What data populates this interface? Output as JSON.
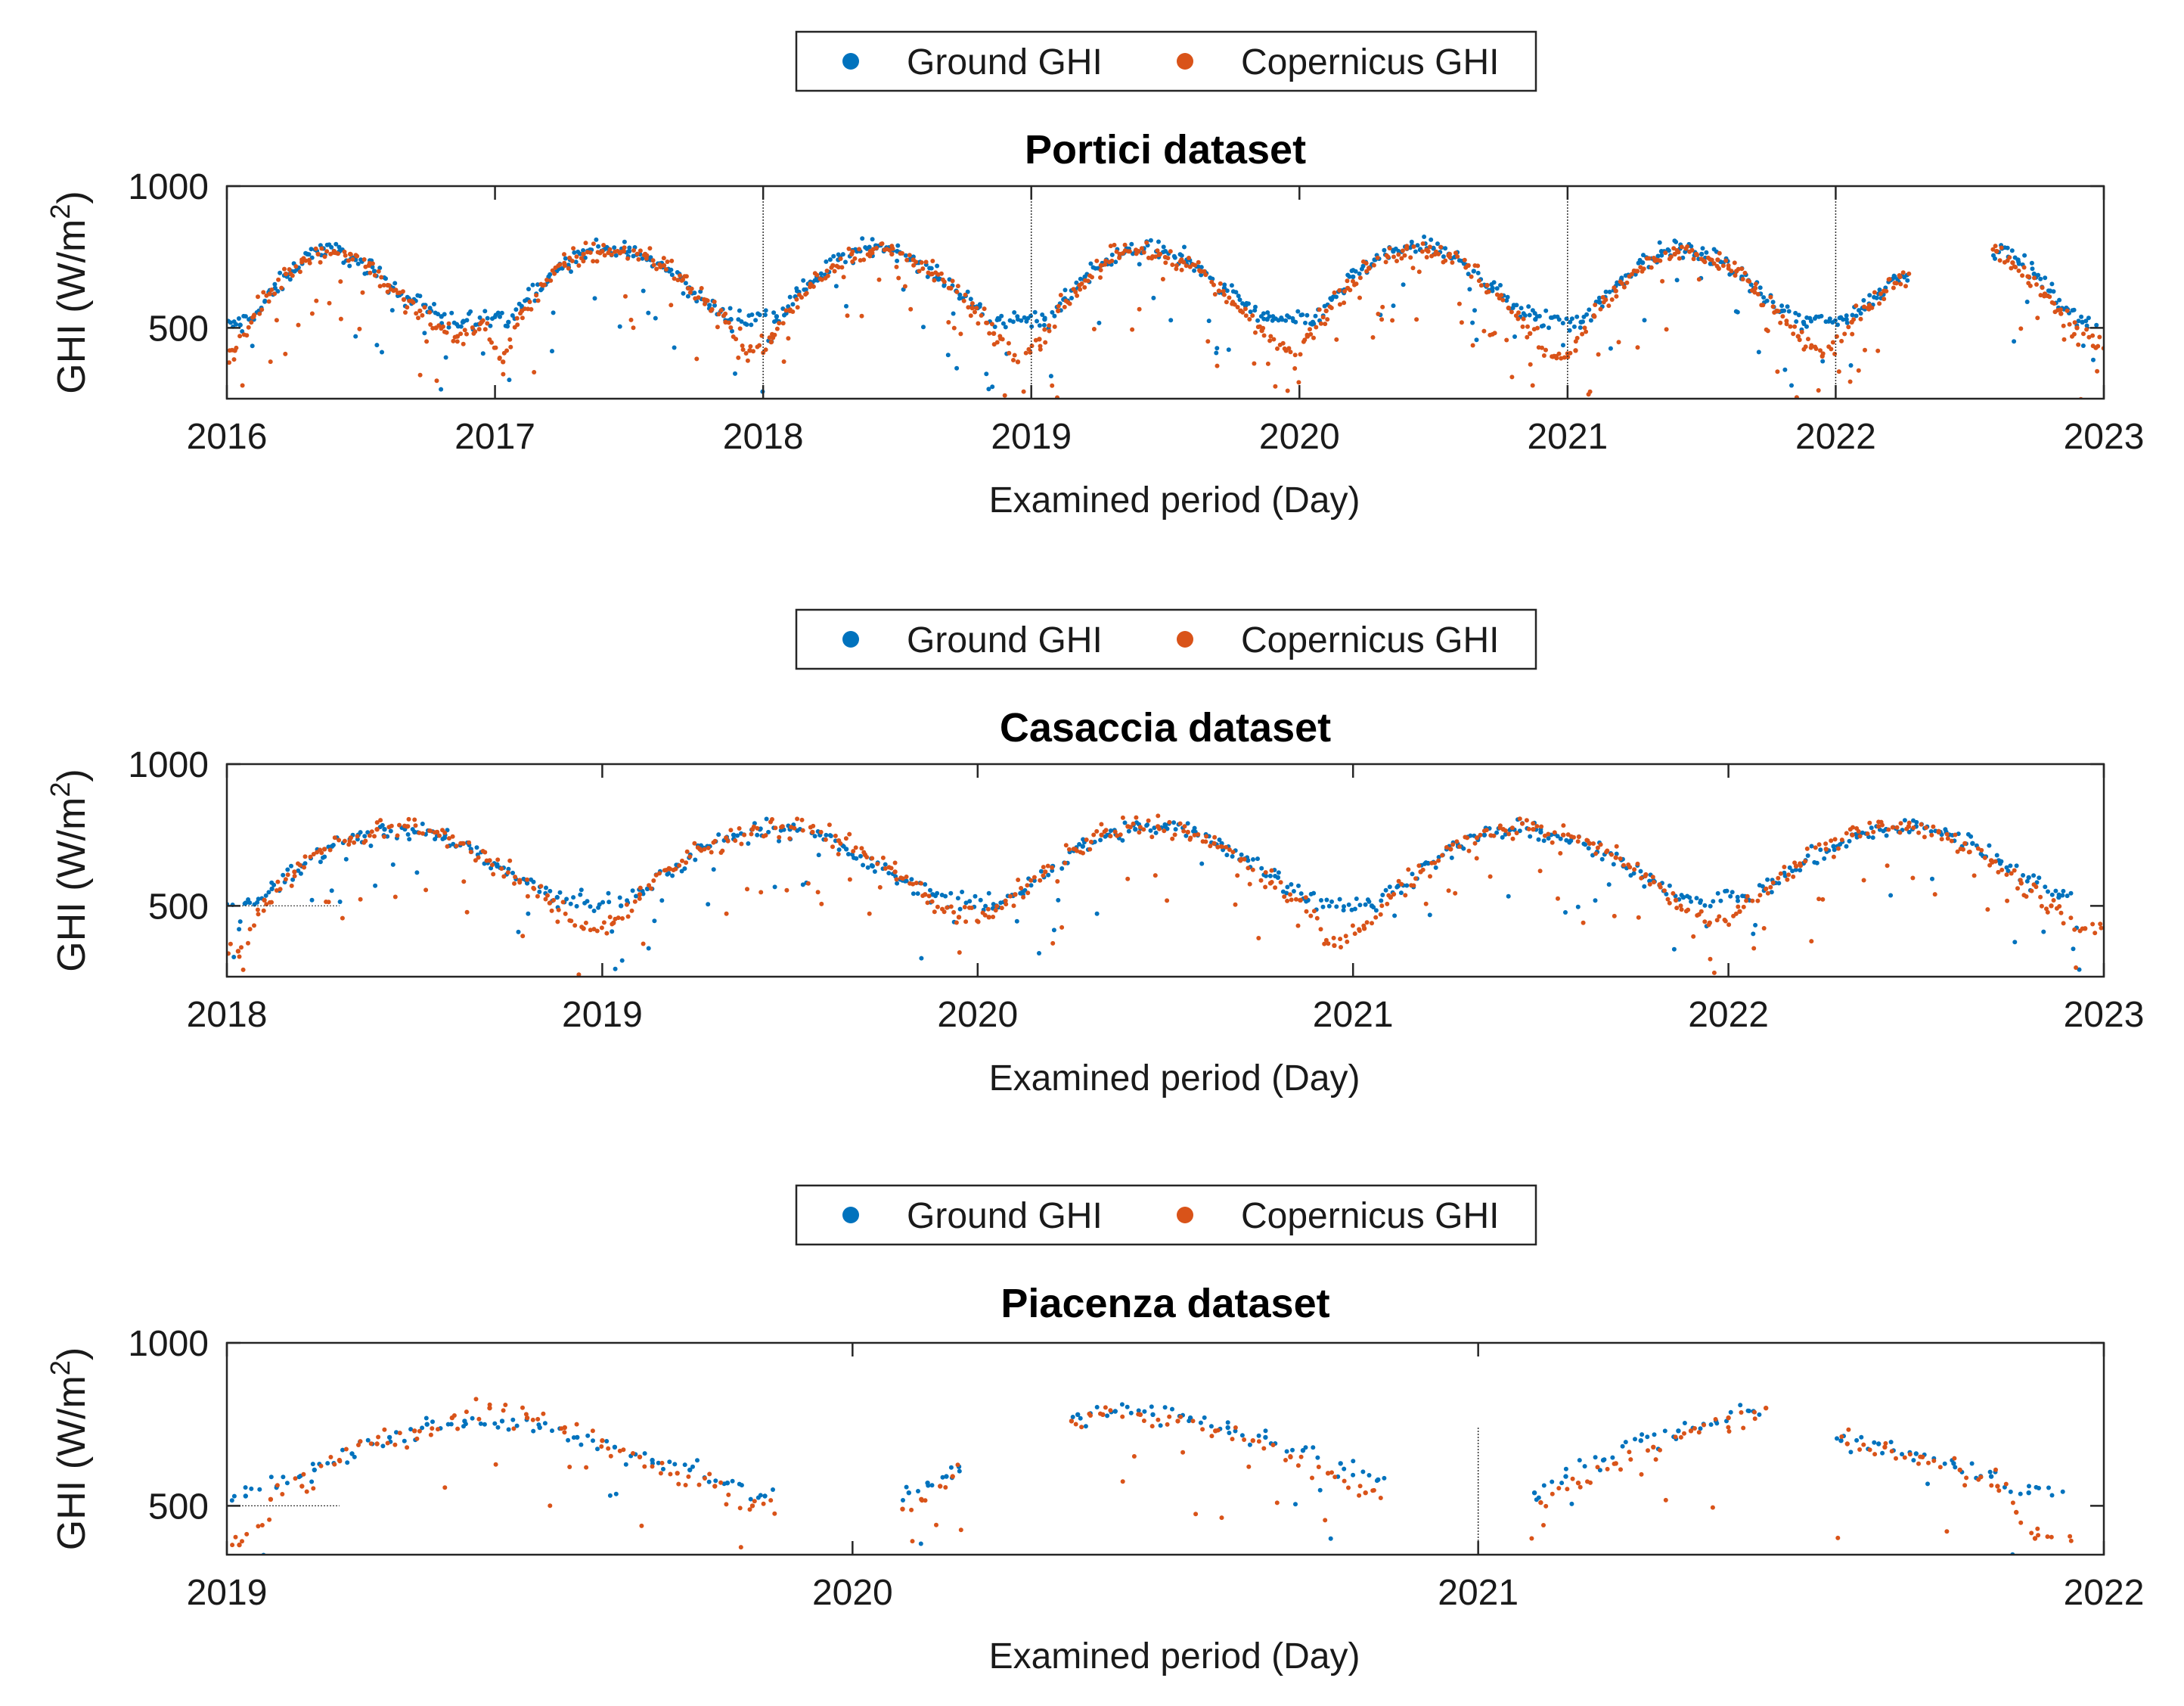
{
  "colors": {
    "ground": "#0072BD",
    "copernicus": "#D95319",
    "axis": "#262626"
  },
  "chart_data": [
    {
      "type": "scatter",
      "title": "Portici dataset",
      "xlabel": "Examined period (Day)",
      "ylabel": "GHI (W/m²)",
      "ylabel_base": "GHI (W/m",
      "ylabel_sup": "2",
      "ylabel_close": ")",
      "xlim": [
        2016,
        2023
      ],
      "ylim": [
        250,
        1000
      ],
      "xticks": [
        2016,
        2017,
        2018,
        2019,
        2020,
        2021,
        2022,
        2023
      ],
      "xtick_labels": [
        "2016",
        "2017",
        "2018",
        "2019",
        "2020",
        "2021",
        "2022",
        "2023"
      ],
      "yticks": [
        500,
        1000
      ],
      "ytick_labels": [
        "500",
        "1000"
      ],
      "legend": [
        "Ground GHI",
        "Copernicus GHI"
      ],
      "legend_position": "top-center outside",
      "gaps": [
        [
          2022.28,
          2022.58
        ]
      ],
      "series": [
        {
          "name": "Ground GHI",
          "x": [
            2016.05,
            2016.12,
            2016.18,
            2016.24,
            2016.3,
            2016.36,
            2016.42,
            2016.48,
            2016.55,
            2016.62,
            2016.68,
            2016.74,
            2016.8,
            2016.88,
            2017.05,
            2017.12,
            2017.2,
            2017.28,
            2017.35,
            2017.42,
            2017.5,
            2017.58,
            2017.65,
            2017.72,
            2017.8,
            2017.88,
            2018.05,
            2018.12,
            2018.2,
            2018.28,
            2018.35,
            2018.42,
            2018.5,
            2018.58,
            2018.65,
            2018.72,
            2018.8,
            2018.88,
            2019.05,
            2019.12,
            2019.2,
            2019.28,
            2019.35,
            2019.42,
            2019.5,
            2019.58,
            2019.65,
            2019.72,
            2019.8,
            2019.88,
            2020.05,
            2020.12,
            2020.2,
            2020.28,
            2020.35,
            2020.42,
            2020.5,
            2020.58,
            2020.65,
            2020.72,
            2020.8,
            2020.88,
            2021.05,
            2021.12,
            2021.2,
            2021.28,
            2021.35,
            2021.42,
            2021.5,
            2021.58,
            2021.65,
            2021.72,
            2021.8,
            2021.88,
            2022.04,
            2022.1,
            2022.16,
            2022.22,
            2022.62,
            2022.68,
            2022.74,
            2022.8,
            2022.86,
            2022.92
          ],
          "y": [
            510,
            560,
            640,
            700,
            760,
            780,
            770,
            740,
            700,
            640,
            600,
            580,
            540,
            520,
            520,
            600,
            680,
            740,
            770,
            780,
            770,
            740,
            700,
            640,
            580,
            530,
            540,
            610,
            680,
            740,
            770,
            790,
            770,
            730,
            680,
            630,
            570,
            530,
            530,
            600,
            680,
            740,
            770,
            780,
            770,
            740,
            690,
            640,
            580,
            530,
            520,
            600,
            680,
            740,
            770,
            790,
            780,
            750,
            700,
            640,
            580,
            530,
            520,
            590,
            670,
            730,
            770,
            780,
            760,
            730,
            680,
            620,
            560,
            520,
            530,
            570,
            620,
            680,
            780,
            740,
            690,
            630,
            570,
            520
          ]
        },
        {
          "name": "Copernicus GHI",
          "x": [
            2016.03,
            2016.1,
            2016.16,
            2016.22,
            2016.28,
            2016.34,
            2016.4,
            2016.46,
            2016.53,
            2016.6,
            2016.66,
            2016.72,
            2016.78,
            2016.86,
            2016.95,
            2017.03,
            2017.1,
            2017.18,
            2017.26,
            2017.33,
            2017.4,
            2017.48,
            2017.56,
            2017.63,
            2017.7,
            2017.78,
            2017.86,
            2017.95,
            2018.03,
            2018.1,
            2018.18,
            2018.26,
            2018.33,
            2018.4,
            2018.48,
            2018.56,
            2018.63,
            2018.7,
            2018.78,
            2018.86,
            2018.95,
            2019.03,
            2019.1,
            2019.18,
            2019.26,
            2019.33,
            2019.4,
            2019.48,
            2019.56,
            2019.63,
            2019.7,
            2019.78,
            2019.86,
            2019.95,
            2020.03,
            2020.1,
            2020.18,
            2020.26,
            2020.33,
            2020.4,
            2020.48,
            2020.56,
            2020.63,
            2020.7,
            2020.78,
            2020.86,
            2020.95,
            2021.03,
            2021.1,
            2021.18,
            2021.26,
            2021.33,
            2021.4,
            2021.48,
            2021.56,
            2021.63,
            2021.7,
            2021.78,
            2021.86,
            2021.95,
            2022.06,
            2022.12,
            2022.18,
            2022.24,
            2022.6,
            2022.66,
            2022.72,
            2022.78,
            2022.84,
            2022.9,
            2022.97
          ],
          "y": [
            420,
            540,
            620,
            690,
            740,
            760,
            770,
            760,
            720,
            650,
            600,
            560,
            500,
            470,
            520,
            380,
            560,
            650,
            720,
            760,
            770,
            770,
            760,
            720,
            670,
            600,
            520,
            420,
            450,
            560,
            650,
            720,
            760,
            770,
            760,
            740,
            690,
            640,
            570,
            480,
            380,
            460,
            560,
            650,
            720,
            760,
            770,
            760,
            740,
            700,
            630,
            560,
            490,
            420,
            470,
            560,
            640,
            710,
            750,
            780,
            770,
            760,
            720,
            650,
            570,
            480,
            400,
            420,
            540,
            630,
            700,
            740,
            760,
            760,
            740,
            700,
            640,
            560,
            470,
            400,
            520,
            570,
            630,
            680,
            770,
            730,
            680,
            620,
            550,
            500,
            430
          ]
        }
      ]
    },
    {
      "type": "scatter",
      "title": "Casaccia dataset",
      "xlabel": "Examined period (Day)",
      "ylabel": "GHI (W/m²)",
      "ylabel_base": "GHI (W/m",
      "ylabel_sup": "2",
      "ylabel_close": ")",
      "xlim": [
        2018,
        2023
      ],
      "ylim": [
        250,
        1000
      ],
      "xticks": [
        2018,
        2019,
        2020,
        2021,
        2022,
        2023
      ],
      "xtick_labels": [
        "2018",
        "2019",
        "2020",
        "2021",
        "2022",
        "2023"
      ],
      "yticks": [
        500,
        1000
      ],
      "ytick_labels": [
        "500",
        "1000"
      ],
      "legend": [
        "Ground GHI",
        "Copernicus GHI"
      ],
      "legend_position": "top-center outside",
      "gaps": [],
      "series": [
        {
          "name": "Ground GHI",
          "x": [
            2018.05,
            2018.12,
            2018.2,
            2018.28,
            2018.35,
            2018.42,
            2018.5,
            2018.58,
            2018.65,
            2018.72,
            2018.8,
            2018.88,
            2019.05,
            2019.12,
            2019.2,
            2019.28,
            2019.35,
            2019.42,
            2019.5,
            2019.58,
            2019.65,
            2019.72,
            2019.8,
            2019.88,
            2020.05,
            2020.12,
            2020.2,
            2020.28,
            2020.35,
            2020.42,
            2020.5,
            2020.58,
            2020.65,
            2020.72,
            2020.8,
            2020.88,
            2021.05,
            2021.12,
            2021.2,
            2021.28,
            2021.35,
            2021.42,
            2021.5,
            2021.58,
            2021.65,
            2021.72,
            2021.8,
            2021.88,
            2022.05,
            2022.12,
            2022.2,
            2022.28,
            2022.35,
            2022.42,
            2022.5,
            2022.58,
            2022.65,
            2022.72,
            2022.8,
            2022.88
          ],
          "y": [
            510,
            560,
            640,
            710,
            750,
            770,
            760,
            740,
            700,
            640,
            580,
            530,
            500,
            560,
            640,
            710,
            750,
            770,
            770,
            750,
            700,
            640,
            590,
            540,
            500,
            550,
            640,
            710,
            750,
            770,
            780,
            760,
            720,
            660,
            600,
            520,
            500,
            570,
            650,
            710,
            750,
            770,
            760,
            730,
            690,
            640,
            590,
            530,
            530,
            580,
            650,
            710,
            750,
            770,
            780,
            760,
            720,
            660,
            600,
            530
          ]
        },
        {
          "name": "Copernicus GHI",
          "x": [
            2018.03,
            2018.1,
            2018.18,
            2018.26,
            2018.33,
            2018.4,
            2018.48,
            2018.56,
            2018.63,
            2018.7,
            2018.78,
            2018.86,
            2018.95,
            2019.03,
            2019.1,
            2019.18,
            2019.26,
            2019.33,
            2019.4,
            2019.48,
            2019.56,
            2019.63,
            2019.7,
            2019.78,
            2019.86,
            2019.95,
            2020.03,
            2020.1,
            2020.18,
            2020.26,
            2020.33,
            2020.4,
            2020.48,
            2020.56,
            2020.63,
            2020.7,
            2020.78,
            2020.86,
            2020.95,
            2021.03,
            2021.1,
            2021.18,
            2021.26,
            2021.33,
            2021.4,
            2021.48,
            2021.56,
            2021.63,
            2021.7,
            2021.78,
            2021.86,
            2021.95,
            2022.03,
            2022.1,
            2022.18,
            2022.26,
            2022.33,
            2022.4,
            2022.48,
            2022.56,
            2022.63,
            2022.7,
            2022.78,
            2022.86,
            2022.95
          ],
          "y": [
            340,
            520,
            620,
            700,
            740,
            770,
            780,
            760,
            720,
            660,
            590,
            510,
            420,
            440,
            540,
            630,
            700,
            740,
            770,
            780,
            760,
            730,
            680,
            620,
            540,
            460,
            460,
            540,
            620,
            700,
            750,
            780,
            780,
            760,
            720,
            660,
            580,
            520,
            360,
            420,
            530,
            620,
            700,
            740,
            770,
            770,
            750,
            720,
            670,
            610,
            520,
            440,
            480,
            560,
            640,
            700,
            750,
            780,
            780,
            760,
            720,
            660,
            580,
            500,
            420
          ]
        }
      ]
    },
    {
      "type": "scatter",
      "title": "Piacenza dataset",
      "xlabel": "Examined period (Day)",
      "ylabel": "GHI (W/m²)",
      "ylabel_base": "GHI (W/m",
      "ylabel_sup": "2",
      "ylabel_close": ")",
      "xlim": [
        2019,
        2022
      ],
      "ylim": [
        350,
        1000
      ],
      "xticks": [
        2019,
        2020,
        2021,
        2022
      ],
      "xtick_labels": [
        "2019",
        "2020",
        "2021",
        "2022"
      ],
      "yticks": [
        500,
        1000
      ],
      "ytick_labels": [
        "500",
        "1000"
      ],
      "legend": [
        "Ground GHI",
        "Copernicus GHI"
      ],
      "legend_position": "top-center outside",
      "gaps": [
        [
          2019.88,
          2020.08
        ],
        [
          2020.18,
          2020.35
        ],
        [
          2020.85,
          2021.08
        ],
        [
          2021.45,
          2021.57
        ]
      ],
      "series": [
        {
          "name": "Ground GHI",
          "x": [
            2019.03,
            2019.08,
            2019.14,
            2019.2,
            2019.26,
            2019.32,
            2019.38,
            2019.44,
            2019.5,
            2019.56,
            2019.62,
            2019.68,
            2019.74,
            2019.8,
            2019.86,
            2020.09,
            2020.12,
            2020.15,
            2020.17,
            2020.36,
            2020.42,
            2020.48,
            2020.54,
            2020.6,
            2020.66,
            2020.72,
            2020.78,
            2020.84,
            2021.09,
            2021.14,
            2021.2,
            2021.26,
            2021.32,
            2021.38,
            2021.44,
            2021.58,
            2021.64,
            2021.7,
            2021.76,
            2021.82,
            2021.88
          ],
          "y": [
            530,
            560,
            610,
            660,
            710,
            750,
            760,
            760,
            740,
            710,
            680,
            640,
            610,
            570,
            530,
            540,
            570,
            590,
            620,
            780,
            790,
            780,
            770,
            740,
            710,
            670,
            630,
            580,
            540,
            590,
            640,
            700,
            730,
            760,
            790,
            700,
            690,
            660,
            630,
            590,
            540
          ]
        },
        {
          "name": "Copernicus GHI",
          "x": [
            2019.02,
            2019.07,
            2019.12,
            2019.18,
            2019.24,
            2019.3,
            2019.36,
            2019.42,
            2019.48,
            2019.54,
            2019.6,
            2019.66,
            2019.72,
            2019.78,
            2019.84,
            2020.08,
            2020.11,
            2020.14,
            2020.16,
            2020.35,
            2020.4,
            2020.46,
            2020.52,
            2020.58,
            2020.64,
            2020.7,
            2020.76,
            2020.82,
            2021.1,
            2021.16,
            2021.22,
            2021.28,
            2021.34,
            2021.4,
            2021.46,
            2021.59,
            2021.65,
            2021.71,
            2021.77,
            2021.83,
            2021.86,
            2021.89
          ],
          "y": [
            380,
            520,
            560,
            640,
            690,
            730,
            770,
            800,
            770,
            740,
            700,
            650,
            600,
            560,
            500,
            490,
            520,
            560,
            590,
            760,
            780,
            780,
            760,
            730,
            700,
            650,
            600,
            540,
            510,
            570,
            630,
            680,
            730,
            770,
            800,
            690,
            680,
            650,
            610,
            560,
            480,
            400
          ]
        }
      ]
    }
  ]
}
